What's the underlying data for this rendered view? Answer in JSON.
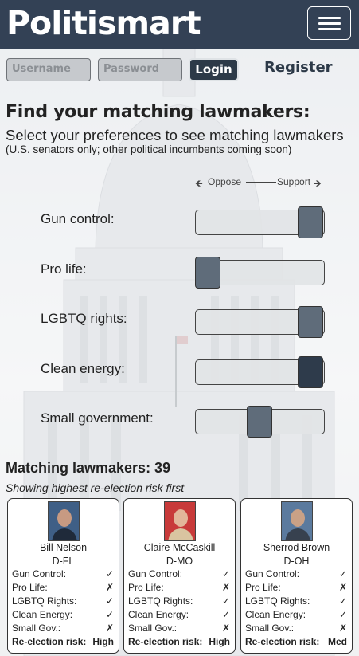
{
  "header": {
    "brand": "Politismart",
    "menu_icon": "hamburger-icon"
  },
  "login": {
    "username_placeholder": "Username",
    "password_placeholder": "Password",
    "login_label": "Login",
    "register_label": "Register"
  },
  "intro": {
    "title": "Find your matching lawmakers:",
    "subtitle": "Select your preferences to see matching lawmakers",
    "note": "(U.S. senators only; other political incumbents coming soon)"
  },
  "scale": {
    "left_arrow": "🡸",
    "oppose": "Oppose",
    "support": "Support",
    "right_arrow": "🡺"
  },
  "preferences": [
    {
      "label": "Gun control:",
      "value": 1.0
    },
    {
      "label": "Pro life:",
      "value": 0.0
    },
    {
      "label": "LGBTQ rights:",
      "value": 1.0
    },
    {
      "label": "Clean energy:",
      "value": 1.0
    },
    {
      "label": "Small government:",
      "value": 0.5
    }
  ],
  "results": {
    "count_label": "Matching lawmakers: 39",
    "sort_note": "Showing highest re-election risk first"
  },
  "check": "✓",
  "cross": "✗",
  "cards": [
    {
      "name": "Bill Nelson",
      "party": "D-FL",
      "rows": [
        {
          "label": "Gun Control:",
          "value": "✓"
        },
        {
          "label": "Pro Life:",
          "value": "✗"
        },
        {
          "label": "LGBTQ Rights:",
          "value": "✓"
        },
        {
          "label": "Clean Energy:",
          "value": "✓"
        },
        {
          "label": "Small Gov.:",
          "value": "✗"
        }
      ],
      "risk_label": "Re-election risk:",
      "risk": "High"
    },
    {
      "name": "Claire McCaskill",
      "party": "D-MO",
      "rows": [
        {
          "label": "Gun Control:",
          "value": "✓"
        },
        {
          "label": "Pro Life:",
          "value": "✗"
        },
        {
          "label": "LGBTQ Rights:",
          "value": "✓"
        },
        {
          "label": "Clean Energy:",
          "value": "✓"
        },
        {
          "label": "Small Gov.:",
          "value": "✗"
        }
      ],
      "risk_label": "Re-election risk:",
      "risk": "High"
    },
    {
      "name": "Sherrod Brown",
      "party": "D-OH",
      "rows": [
        {
          "label": "Gun Control:",
          "value": "✓"
        },
        {
          "label": "Pro Life:",
          "value": "✗"
        },
        {
          "label": "LGBTQ Rights:",
          "value": "✓"
        },
        {
          "label": "Clean Energy:",
          "value": "✓"
        },
        {
          "label": "Small Gov.:",
          "value": "✗"
        }
      ],
      "risk_label": "Re-election risk:",
      "risk": "Med"
    }
  ]
}
